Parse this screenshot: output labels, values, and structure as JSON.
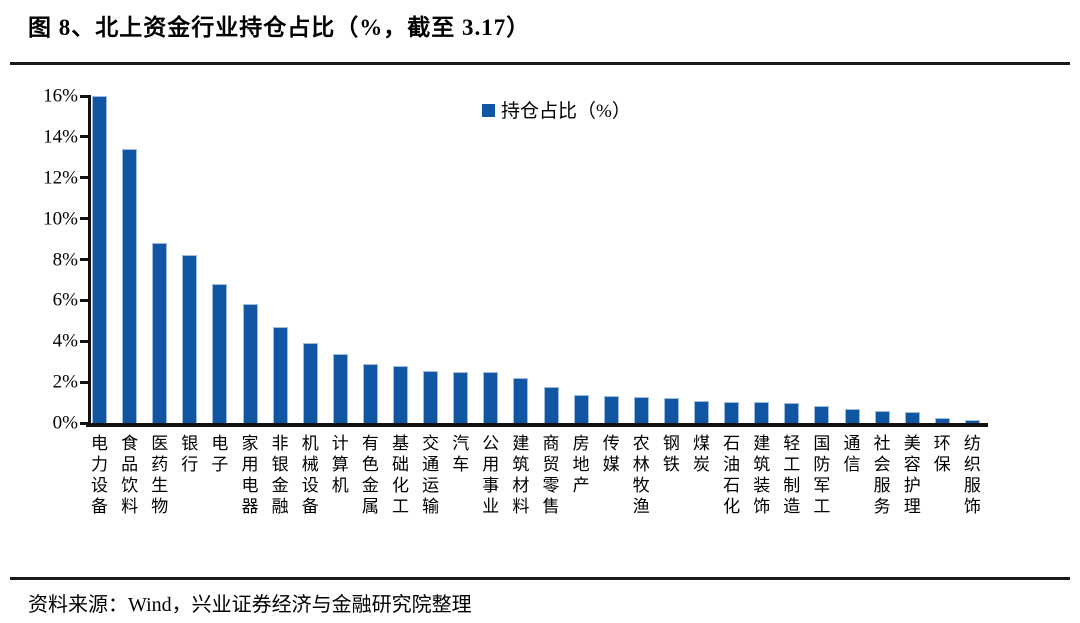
{
  "figure": {
    "title": "图 8、北上资金行业持仓占比（%，截至 3.17）"
  },
  "legend": {
    "label": "持仓占比（%）",
    "marker_color": "#1056A2"
  },
  "source": {
    "text": "资料来源：Wind，兴业证券经济与金融研究院整理"
  },
  "colors": {
    "bar_fill": "#1056A2",
    "bar_border": "#9FBBDD",
    "axis": "#111111",
    "text": "#000000"
  },
  "chart_data": {
    "type": "bar",
    "title": "北上资金行业持仓占比（%，截至 3.17）",
    "xlabel": "",
    "ylabel": "",
    "ylim": [
      0,
      16
    ],
    "grid": false,
    "legend_position": "top-center",
    "legend_entries": [
      "持仓占比（%）"
    ],
    "ytick_labels": [
      "0%",
      "2%",
      "4%",
      "6%",
      "8%",
      "10%",
      "12%",
      "14%",
      "16%"
    ],
    "ytick_values": [
      0,
      2,
      4,
      6,
      8,
      10,
      12,
      14,
      16
    ],
    "categories": [
      "电力设备",
      "食品饮料",
      "医药生物",
      "银行",
      "电子",
      "家用电器",
      "非银金融",
      "机械设备",
      "计算机",
      "有色金属",
      "基础化工",
      "交通运输",
      "汽车",
      "公用事业",
      "建筑材料",
      "商贸零售",
      "房地产",
      "传媒",
      "农林牧渔",
      "钢铁",
      "煤炭",
      "石油石化",
      "建筑装饰",
      "轻工制造",
      "国防军工",
      "通信",
      "社会服务",
      "美容护理",
      "环保",
      "纺织服饰"
    ],
    "values": [
      16.0,
      13.4,
      8.8,
      8.2,
      6.8,
      5.8,
      4.7,
      3.9,
      3.4,
      2.9,
      2.8,
      2.55,
      2.5,
      2.5,
      2.2,
      1.75,
      1.35,
      1.3,
      1.25,
      1.2,
      1.1,
      1.05,
      1.05,
      1.0,
      0.85,
      0.7,
      0.6,
      0.55,
      0.25,
      0.15
    ]
  }
}
